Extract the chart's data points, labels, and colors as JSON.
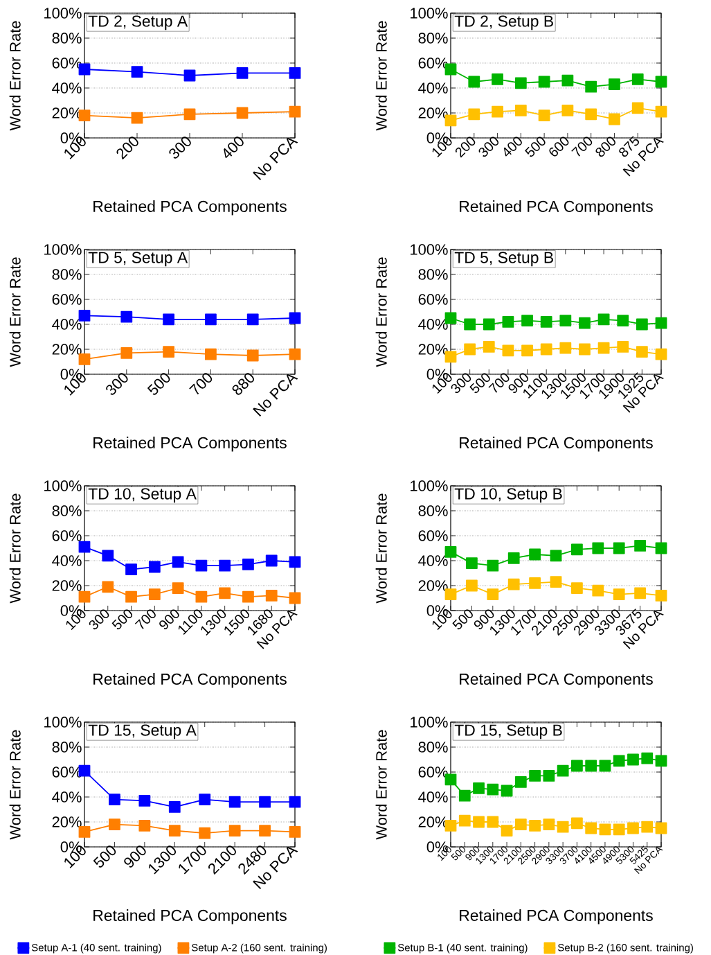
{
  "chart_data": [
    {
      "type": "line",
      "title": "TD 2, Setup A",
      "xlabel": "Retained PCA Components",
      "ylabel": "Word Error Rate",
      "categories": [
        "100",
        "200",
        "300",
        "400",
        "No PCA"
      ],
      "ylim": [
        0,
        100
      ],
      "yticks": [
        {
          "value": 0,
          "label": "0%"
        },
        {
          "value": 20,
          "label": "20%"
        },
        {
          "value": 40,
          "label": "40%"
        },
        {
          "value": 60,
          "label": "60%"
        },
        {
          "value": 80,
          "label": "80%"
        },
        {
          "value": 100,
          "label": "100%"
        }
      ],
      "grid": "y",
      "marker": "square",
      "line_style": "solid",
      "series": [
        {
          "color": "#0000ff",
          "values": [
            55,
            53,
            50,
            52,
            52
          ]
        },
        {
          "color": "#ff7f00",
          "values": [
            18,
            16,
            19,
            20,
            21
          ]
        }
      ]
    },
    {
      "type": "line",
      "title": "TD 2, Setup B",
      "xlabel": "Retained PCA Components",
      "ylabel": "Word Error Rate",
      "categories": [
        "100",
        "200",
        "300",
        "400",
        "500",
        "600",
        "700",
        "800",
        "875",
        "No PCA"
      ],
      "ylim": [
        0,
        100
      ],
      "yticks": [
        {
          "value": 0,
          "label": "0%"
        },
        {
          "value": 20,
          "label": "20%"
        },
        {
          "value": 40,
          "label": "40%"
        },
        {
          "value": 60,
          "label": "60%"
        },
        {
          "value": 80,
          "label": "80%"
        },
        {
          "value": 100,
          "label": "100%"
        }
      ],
      "grid": "y",
      "marker": "square",
      "line_style": "solid",
      "series": [
        {
          "color": "#00b400",
          "values": [
            55,
            45,
            47,
            44,
            45,
            46,
            41,
            43,
            47,
            45
          ]
        },
        {
          "color": "#ffc000",
          "values": [
            14,
            19,
            21,
            22,
            18,
            22,
            19,
            15,
            24,
            21
          ]
        }
      ]
    },
    {
      "type": "line",
      "title": "TD 5, Setup A",
      "xlabel": "Retained PCA Components",
      "ylabel": "Word Error Rate",
      "categories": [
        "100",
        "300",
        "500",
        "700",
        "880",
        "No PCA"
      ],
      "ylim": [
        0,
        100
      ],
      "yticks": [
        {
          "value": 0,
          "label": "0%"
        },
        {
          "value": 20,
          "label": "20%"
        },
        {
          "value": 40,
          "label": "40%"
        },
        {
          "value": 60,
          "label": "60%"
        },
        {
          "value": 80,
          "label": "80%"
        },
        {
          "value": 100,
          "label": "100%"
        }
      ],
      "grid": "y",
      "marker": "square",
      "line_style": "solid",
      "series": [
        {
          "color": "#0000ff",
          "values": [
            47,
            46,
            44,
            44,
            44,
            45
          ]
        },
        {
          "color": "#ff7f00",
          "values": [
            12,
            17,
            18,
            16,
            15,
            16
          ]
        }
      ]
    },
    {
      "type": "line",
      "title": "TD 5, Setup B",
      "xlabel": "Retained PCA Components",
      "ylabel": "Word Error Rate",
      "categories": [
        "100",
        "300",
        "500",
        "700",
        "900",
        "1100",
        "1300",
        "1500",
        "1700",
        "1900",
        "1925",
        "No PCA"
      ],
      "ylim": [
        0,
        100
      ],
      "yticks": [
        {
          "value": 0,
          "label": "0%"
        },
        {
          "value": 20,
          "label": "20%"
        },
        {
          "value": 40,
          "label": "40%"
        },
        {
          "value": 60,
          "label": "60%"
        },
        {
          "value": 80,
          "label": "80%"
        },
        {
          "value": 100,
          "label": "100%"
        }
      ],
      "grid": "y",
      "marker": "square",
      "line_style": "solid",
      "series": [
        {
          "color": "#00b400",
          "values": [
            45,
            40,
            40,
            42,
            43,
            42,
            43,
            41,
            44,
            43,
            40,
            41
          ]
        },
        {
          "color": "#ffc000",
          "values": [
            14,
            20,
            22,
            19,
            19,
            20,
            21,
            20,
            21,
            22,
            18,
            16
          ]
        }
      ]
    },
    {
      "type": "line",
      "title": "TD 10, Setup A",
      "xlabel": "Retained PCA Components",
      "ylabel": "Word Error Rate",
      "categories": [
        "100",
        "300",
        "500",
        "700",
        "900",
        "1100",
        "1300",
        "1500",
        "1680",
        "No PCA"
      ],
      "ylim": [
        0,
        100
      ],
      "yticks": [
        {
          "value": 0,
          "label": "0%"
        },
        {
          "value": 20,
          "label": "20%"
        },
        {
          "value": 40,
          "label": "40%"
        },
        {
          "value": 60,
          "label": "60%"
        },
        {
          "value": 80,
          "label": "80%"
        },
        {
          "value": 100,
          "label": "100%"
        }
      ],
      "grid": "y",
      "marker": "square",
      "line_style": "solid",
      "series": [
        {
          "color": "#0000ff",
          "values": [
            51,
            44,
            33,
            35,
            39,
            36,
            36,
            37,
            40,
            39
          ]
        },
        {
          "color": "#ff7f00",
          "values": [
            11,
            19,
            11,
            13,
            18,
            11,
            14,
            11,
            12,
            10
          ]
        }
      ]
    },
    {
      "type": "line",
      "title": "TD 10, Setup B",
      "xlabel": "Retained PCA Components",
      "ylabel": "Word Error Rate",
      "categories": [
        "100",
        "500",
        "900",
        "1300",
        "1700",
        "2100",
        "2500",
        "2900",
        "3300",
        "3675",
        "No PCA"
      ],
      "ylim": [
        0,
        100
      ],
      "yticks": [
        {
          "value": 0,
          "label": "0%"
        },
        {
          "value": 20,
          "label": "20%"
        },
        {
          "value": 40,
          "label": "40%"
        },
        {
          "value": 60,
          "label": "60%"
        },
        {
          "value": 80,
          "label": "80%"
        },
        {
          "value": 100,
          "label": "100%"
        }
      ],
      "grid": "y",
      "marker": "square",
      "line_style": "solid",
      "series": [
        {
          "color": "#00b400",
          "values": [
            47,
            38,
            36,
            42,
            45,
            44,
            49,
            50,
            50,
            52,
            50
          ]
        },
        {
          "color": "#ffc000",
          "values": [
            13,
            20,
            13,
            21,
            22,
            23,
            18,
            16,
            13,
            14,
            12
          ]
        }
      ]
    },
    {
      "type": "line",
      "title": "TD 15, Setup A",
      "xlabel": "Retained PCA Components",
      "ylabel": "Word Error Rate",
      "categories": [
        "100",
        "500",
        "900",
        "1300",
        "1700",
        "2100",
        "2480",
        "No PCA"
      ],
      "ylim": [
        0,
        100
      ],
      "yticks": [
        {
          "value": 0,
          "label": "0%"
        },
        {
          "value": 20,
          "label": "20%"
        },
        {
          "value": 40,
          "label": "40%"
        },
        {
          "value": 60,
          "label": "60%"
        },
        {
          "value": 80,
          "label": "80%"
        },
        {
          "value": 100,
          "label": "100%"
        }
      ],
      "grid": "y",
      "marker": "square",
      "line_style": "solid",
      "legend": "bottom",
      "series": [
        {
          "name": "Setup A-1 (40 sent. training)",
          "color": "#0000ff",
          "values": [
            61,
            38,
            37,
            32,
            38,
            36,
            36,
            36
          ]
        },
        {
          "name": "Setup A-2 (160 sent. training)",
          "color": "#ff7f00",
          "values": [
            12,
            18,
            17,
            13,
            11,
            13,
            13,
            12
          ]
        }
      ]
    },
    {
      "type": "line",
      "title": "TD 15, Setup B",
      "xlabel": "Retained PCA Components",
      "ylabel": "Word Error Rate",
      "categories": [
        "100",
        "500",
        "900",
        "1300",
        "1700",
        "2100",
        "2500",
        "2900",
        "3300",
        "3700",
        "4100",
        "4500",
        "4900",
        "5300",
        "5425",
        "No PCA"
      ],
      "ylim": [
        0,
        100
      ],
      "yticks": [
        {
          "value": 0,
          "label": "0%"
        },
        {
          "value": 20,
          "label": "20%"
        },
        {
          "value": 40,
          "label": "40%"
        },
        {
          "value": 60,
          "label": "60%"
        },
        {
          "value": 80,
          "label": "80%"
        },
        {
          "value": 100,
          "label": "100%"
        }
      ],
      "grid": "y",
      "marker": "square",
      "line_style": "solid",
      "legend": "bottom",
      "series": [
        {
          "name": "Setup B-1 (40 sent. training)",
          "color": "#00b400",
          "values": [
            54,
            41,
            47,
            46,
            45,
            52,
            57,
            57,
            61,
            65,
            65,
            65,
            69,
            70,
            71,
            69
          ]
        },
        {
          "name": "Setup B-2 (160 sent. training)",
          "color": "#ffc000",
          "values": [
            17,
            21,
            20,
            20,
            13,
            18,
            17,
            18,
            16,
            19,
            15,
            14,
            14,
            15,
            16,
            15
          ]
        }
      ]
    }
  ]
}
